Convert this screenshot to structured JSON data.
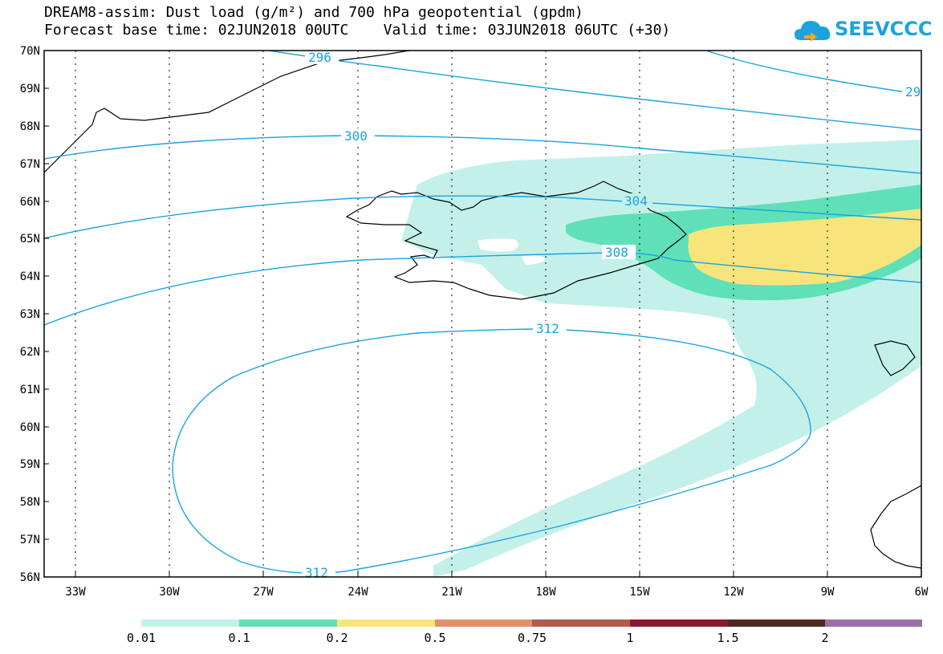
{
  "title_line1": "DREAM8-assim: Dust load (g/m²) and 700 hPa geopotential (gpdm)",
  "title_line2": "Forecast base time: 02JUN2018 00UTC    Valid time: 03JUN2018 06UTC (+30)",
  "logo_text": "SEEVCCC",
  "logo_icon": "cloud-icon",
  "lat_labels": [
    "70N",
    "69N",
    "68N",
    "67N",
    "66N",
    "65N",
    "64N",
    "63N",
    "62N",
    "61N",
    "60N",
    "59N",
    "58N",
    "57N",
    "56N"
  ],
  "lon_labels": [
    "33W",
    "30W",
    "27W",
    "24W",
    "21W",
    "18W",
    "15W",
    "12W",
    "9W",
    "6W"
  ],
  "contour_labels": [
    "296",
    "29",
    "300",
    "304",
    "308",
    "312",
    "312"
  ],
  "legend": {
    "labels": [
      "0.01",
      "0.1",
      "0.2",
      "0.5",
      "0.75",
      "1",
      "1.5",
      "2"
    ],
    "colors": [
      "#c4f0ea",
      "#5fe0b8",
      "#f7e57c",
      "#e2906a",
      "#b35a4f",
      "#8c1631",
      "#4a2a22",
      "#9b6fa8"
    ]
  },
  "colors": {
    "contour": "#1aa3e0",
    "dust_low": "#c4f0ea",
    "dust_mid": "#5fe0b8",
    "dust_high": "#f7e57c"
  }
}
